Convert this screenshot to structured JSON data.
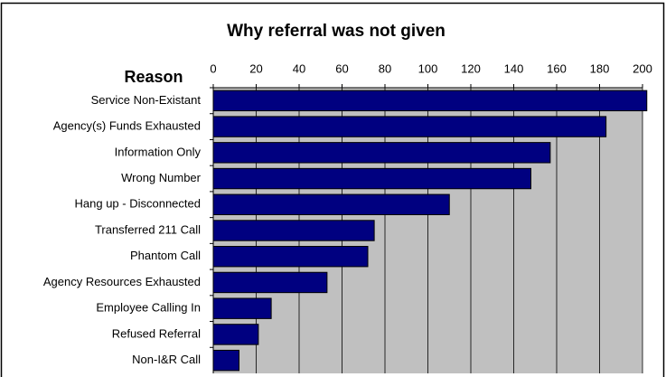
{
  "chart_data": {
    "type": "barh",
    "title": "Why referral was not given",
    "y_label": "Reason",
    "categories": [
      "Service Non-Existant",
      "Agency(s) Funds Exhausted",
      "Information Only",
      "Wrong Number",
      "Hang up - Disconnected",
      "Transferred 211 Call",
      "Phantom Call",
      "Agency Resources Exhausted",
      "Employee Calling In",
      "Refused Referral",
      "Non-I&R Call"
    ],
    "values": [
      202,
      183,
      157,
      148,
      110,
      75,
      72,
      53,
      27,
      21,
      12
    ],
    "color": "#000080",
    "background": "#c0c0c0",
    "xlim": [
      0,
      200
    ],
    "xticks": [
      0,
      20,
      40,
      60,
      80,
      100,
      120,
      140,
      160,
      180,
      200
    ],
    "grid": true
  }
}
